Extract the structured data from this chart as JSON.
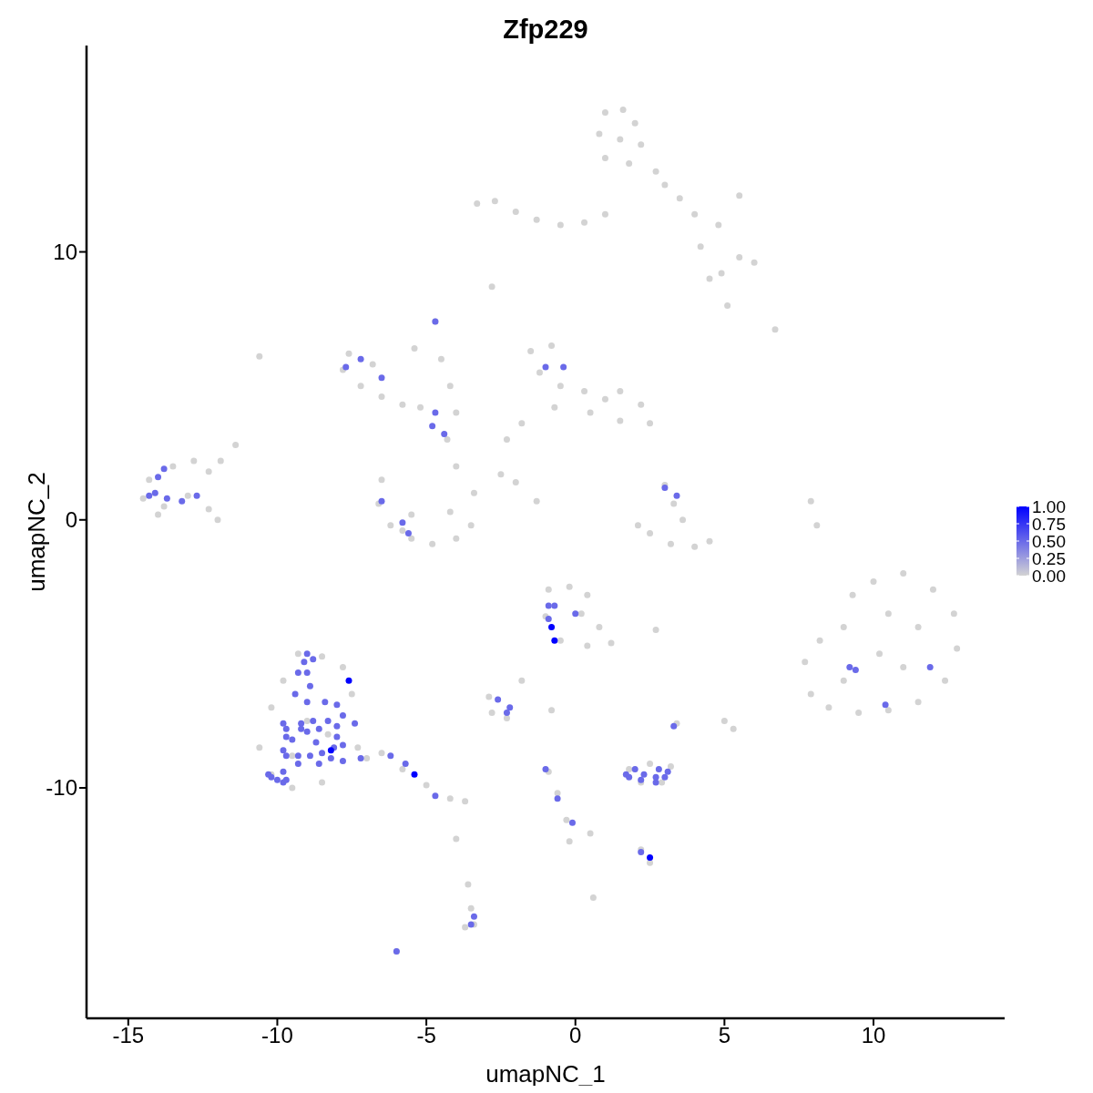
{
  "chart_data": {
    "type": "scatter",
    "title": "Zfp229",
    "xlabel": "umapNC_1",
    "ylabel": "umapNC_2",
    "xlim": [
      -16.4,
      14.4
    ],
    "ylim": [
      -18.6,
      17.7
    ],
    "xticks": [
      -15,
      -10,
      -5,
      0,
      5,
      10
    ],
    "yticks": [
      -10,
      0,
      10
    ],
    "marker": "circle",
    "clim": [
      0,
      1
    ],
    "cticks": [
      {
        "value": 0,
        "label": "0.00"
      },
      0.25,
      {
        "value": 0.5,
        "label": "0.50"
      },
      0.75,
      {
        "value": 1,
        "label": "1.00"
      }
    ],
    "x": [
      1.0,
      1.6,
      2.0,
      0.8,
      1.5,
      2.2,
      1.0,
      1.8,
      2.7,
      3.0,
      3.5,
      4.0,
      4.8,
      5.5,
      4.2,
      4.9,
      5.5,
      6.0,
      4.5,
      -3.3,
      -2.7,
      -2.0,
      -1.3,
      -0.5,
      0.3,
      1.0,
      -2.8,
      5.1,
      6.7,
      -14.3,
      -13.5,
      -12.8,
      -12.3,
      -14.5,
      -13.8,
      -13.0,
      -12.3,
      -12.0,
      -14.0,
      -11.9,
      -11.4,
      -10.6,
      -7.6,
      -7.8,
      -7.2,
      -6.5,
      -5.8,
      -5.2,
      -6.8,
      -5.4,
      -4.7,
      -4.5,
      -4.2,
      -4.0,
      -4.3,
      -4.0,
      -6.5,
      -6.6,
      -6.2,
      -5.5,
      -4.8,
      -4.0,
      -3.5,
      -3.4,
      -4.2,
      -5.5,
      -5.8,
      -1.5,
      -0.8,
      -1.2,
      -0.5,
      0.3,
      1.0,
      1.5,
      2.2,
      2.5,
      1.5,
      0.5,
      -0.7,
      -1.8,
      -2.3,
      -2.5,
      -2.0,
      -1.3,
      3.0,
      3.3,
      3.6,
      2.5,
      3.2,
      4.0,
      4.5,
      2.1,
      7.9,
      8.1,
      10.0,
      11.0,
      12.0,
      12.7,
      12.8,
      12.4,
      11.5,
      10.5,
      9.5,
      8.5,
      7.9,
      7.7,
      8.2,
      9.0,
      9.3,
      10.5,
      11.5,
      10.2,
      11.0,
      9.0,
      -9.3,
      -8.5,
      -7.8,
      -9.8,
      -7.5,
      -10.2,
      -10.6,
      -10.2,
      -9.5,
      -8.5,
      -7.3,
      -7.0,
      -9.0,
      -8.3,
      -9.5,
      -6.5,
      -5.8,
      -5.0,
      -4.2,
      -3.7,
      -4.0,
      -3.6,
      -3.5,
      -3.4,
      -3.7,
      -6.0,
      -0.9,
      -0.2,
      0.4,
      -1.0,
      0.2,
      0.8,
      1.2,
      -0.5,
      0.4,
      2.7,
      -2.9,
      -2.3,
      -2.8,
      -1.8,
      -0.8,
      3.4,
      5.0,
      5.3,
      1.8,
      2.5,
      3.2,
      2.2,
      2.9,
      -0.9,
      -0.6,
      -0.3,
      -0.2,
      0.5,
      2.2,
      2.5,
      0.6,
      -4.7,
      -7.7,
      -7.2,
      -6.5,
      -4.7,
      -4.4,
      -4.8,
      -13.8,
      -14.0,
      -14.3,
      -14.1,
      -13.7,
      -13.2,
      -12.7,
      -6.5,
      -5.8,
      -5.6,
      -1.0,
      -0.4,
      3.0,
      3.4,
      -9.0,
      -8.8,
      -9.1,
      -9.3,
      -9.0,
      -8.9,
      -9.4,
      -9.0,
      -8.4,
      -8.0,
      -7.8,
      -9.8,
      -9.2,
      -8.8,
      -8.6,
      -8.3,
      -8.0,
      -7.4,
      -9.7,
      -9.2,
      -9.0,
      -9.7,
      -9.5,
      -8.7,
      -8.0,
      -8.1,
      -7.8,
      -9.8,
      -9.7,
      -9.3,
      -8.9,
      -8.5,
      -8.2,
      -7.8,
      -9.3,
      -8.6,
      -9.8,
      -10.3,
      -10.2,
      -10.0,
      -9.8,
      -9.7,
      -7.2,
      -6.2,
      -5.7,
      -4.7,
      -0.9,
      -0.7,
      -0.9,
      0.0,
      -2.6,
      -2.2,
      -2.3,
      3.3,
      -1.0,
      -0.6,
      -0.1,
      1.7,
      1.8,
      2.0,
      2.3,
      2.2,
      2.8,
      3.1,
      2.7,
      2.7,
      3.0,
      2.2,
      9.2,
      9.4,
      10.4,
      11.9,
      -3.5,
      -3.4,
      -6.0,
      -7.6,
      -8.2,
      -5.4,
      -0.8,
      -0.7,
      2.5
    ],
    "values": [
      15.2,
      15.3,
      14.8,
      14.4,
      14.2,
      14.0,
      13.5,
      13.3,
      13.0,
      12.5,
      12.0,
      11.4,
      11.0,
      12.1,
      10.2,
      9.2,
      9.8,
      9.6,
      9.0,
      11.8,
      11.9,
      11.5,
      11.2,
      11.0,
      11.1,
      11.4,
      8.7,
      8.0,
      7.1,
      1.5,
      2.0,
      2.2,
      1.8,
      0.8,
      0.5,
      0.9,
      0.4,
      0.0,
      0.2,
      2.2,
      2.8,
      6.1,
      6.2,
      5.6,
      5.0,
      4.6,
      4.3,
      4.2,
      5.8,
      6.4,
      7.4,
      6.0,
      5.0,
      4.0,
      3.0,
      2.0,
      1.5,
      0.6,
      -0.2,
      -0.7,
      -0.9,
      -0.7,
      -0.2,
      1.0,
      0.3,
      0.2,
      -0.4,
      6.3,
      6.5,
      5.5,
      5.0,
      4.8,
      4.5,
      4.8,
      4.3,
      3.6,
      3.7,
      4.0,
      4.2,
      3.6,
      3.0,
      1.7,
      1.4,
      0.7,
      1.3,
      0.6,
      0.0,
      -0.5,
      -0.9,
      -1.0,
      -0.8,
      -0.2,
      0.7,
      -0.2,
      -2.3,
      -2.0,
      -2.6,
      -3.5,
      -4.8,
      -6.0,
      -6.8,
      -7.1,
      -7.2,
      -7.0,
      -6.5,
      -5.3,
      -4.5,
      -4.0,
      -2.8,
      -3.5,
      -4.0,
      -5.0,
      -5.5,
      -6.0,
      -5.0,
      -5.1,
      -5.5,
      -6.0,
      -6.5,
      -7.0,
      -8.5,
      -9.5,
      -10.0,
      -9.8,
      -8.5,
      -8.9,
      -7.5,
      -8.0,
      -8.8,
      -8.7,
      -9.3,
      -9.9,
      -10.4,
      -10.5,
      -11.9,
      -13.6,
      -14.5,
      -15.1,
      -15.2,
      -16.1,
      -2.6,
      -2.5,
      -2.8,
      -3.6,
      -3.5,
      -4.0,
      -4.6,
      -4.5,
      -4.7,
      -4.1,
      -6.6,
      -7.4,
      -7.2,
      -6.0,
      -7.1,
      -7.6,
      -7.5,
      -7.8,
      -9.3,
      -9.1,
      -9.2,
      -9.8,
      -9.8,
      -9.4,
      -10.2,
      -11.2,
      -12.0,
      -11.7,
      -12.3,
      -12.8,
      -14.1,
      7.4,
      5.7,
      6.0,
      5.3,
      4.0,
      3.2,
      3.5,
      1.9,
      1.6,
      0.9,
      1.0,
      0.8,
      0.7,
      0.9,
      0.7,
      -0.1,
      -0.5,
      5.7,
      5.7,
      1.2,
      0.9,
      -5.0,
      -5.2,
      -5.3,
      -5.7,
      -5.7,
      -6.2,
      -6.5,
      -6.8,
      -6.8,
      -6.9,
      -7.3,
      -7.6,
      -7.6,
      -7.5,
      -7.8,
      -7.5,
      -7.7,
      -7.6,
      -7.8,
      -7.8,
      -7.9,
      -8.1,
      -8.2,
      -8.3,
      -8.1,
      -8.5,
      -8.4,
      -8.6,
      -8.8,
      -8.8,
      -8.8,
      -8.7,
      -8.9,
      -9.0,
      -9.1,
      -9.1,
      -9.4,
      -9.5,
      -9.6,
      -9.7,
      -9.8,
      -9.7,
      -8.9,
      -8.8,
      -9.1,
      -10.3,
      -3.2,
      -3.2,
      -3.7,
      -3.5,
      -6.7,
      -7.0,
      -7.2,
      -7.7,
      -9.3,
      -10.4,
      -11.3,
      -9.5,
      -9.6,
      -9.3,
      -9.5,
      -9.7,
      -9.3,
      -9.4,
      -9.6,
      -9.8,
      -9.6,
      -12.4,
      -5.5,
      -5.6,
      -6.9,
      -5.5,
      -15.1,
      -14.8,
      -16.1,
      -6.0,
      -8.6,
      -9.5,
      -4.0,
      -4.5,
      -12.6
    ],
    "cvalues": [
      0,
      0,
      0,
      0,
      0,
      0,
      0,
      0,
      0,
      0,
      0,
      0,
      0,
      0,
      0,
      0,
      0,
      0,
      0,
      0,
      0,
      0,
      0,
      0,
      0,
      0,
      0,
      0,
      0,
      0,
      0,
      0,
      0,
      0,
      0,
      0,
      0,
      0,
      0,
      0,
      0,
      0,
      0,
      0,
      0,
      0,
      0,
      0,
      0,
      0,
      0,
      0,
      0,
      0,
      0,
      0,
      0,
      0,
      0,
      0,
      0,
      0,
      0,
      0,
      0,
      0,
      0,
      0,
      0,
      0,
      0,
      0,
      0,
      0,
      0,
      0,
      0,
      0,
      0,
      0,
      0,
      0,
      0,
      0,
      0,
      0,
      0,
      0,
      0,
      0,
      0,
      0,
      0,
      0,
      0,
      0,
      0,
      0,
      0,
      0,
      0,
      0,
      0,
      0,
      0,
      0,
      0,
      0,
      0,
      0,
      0,
      0,
      0,
      0,
      0,
      0,
      0,
      0,
      0,
      0,
      0,
      0,
      0,
      0,
      0,
      0,
      0,
      0,
      0,
      0,
      0,
      0,
      0,
      0,
      0,
      0,
      0,
      0,
      0,
      0,
      0,
      0,
      0,
      0,
      0,
      0,
      0,
      0,
      0,
      0,
      0,
      0,
      0,
      0,
      0,
      0,
      0,
      0,
      0,
      0,
      0,
      0,
      0,
      0,
      0,
      0,
      0,
      0,
      0,
      0,
      0,
      0.5,
      0.5,
      0.5,
      0.5,
      0.5,
      0.5,
      0.5,
      0.5,
      0.5,
      0.5,
      0.5,
      0.5,
      0.5,
      0.5,
      0.5,
      0.5,
      0.5,
      0.5,
      0.5,
      0.5,
      0.5,
      0.5,
      0.5,
      0.5,
      0.5,
      0.5,
      0.5,
      0.5,
      0.5,
      0.5,
      0.5,
      0.5,
      0.5,
      0.5,
      0.5,
      0.5,
      0.5,
      0.5,
      0.5,
      0.5,
      0.5,
      0.5,
      0.5,
      0.5,
      0.5,
      0.5,
      0.5,
      0.5,
      0.5,
      0.5,
      0.5,
      0.5,
      0.5,
      0.5,
      0.5,
      0.5,
      0.5,
      0.5,
      0.5,
      0.5,
      0.5,
      0.5,
      0.5,
      0.5,
      0.5,
      0.5,
      0.5,
      0.5,
      0.5,
      0.5,
      0.5,
      0.5,
      0.5,
      0.5,
      0.5,
      0.5,
      0.5,
      0.5,
      0.5,
      0.5,
      0.5,
      0.5,
      0.5,
      0.5,
      0.5,
      0.5,
      0.5,
      0.5,
      0.5,
      0.5,
      0.5,
      0.5,
      0.5,
      0.5,
      0.5,
      0.5,
      1,
      1,
      1,
      1,
      1,
      1
    ]
  }
}
